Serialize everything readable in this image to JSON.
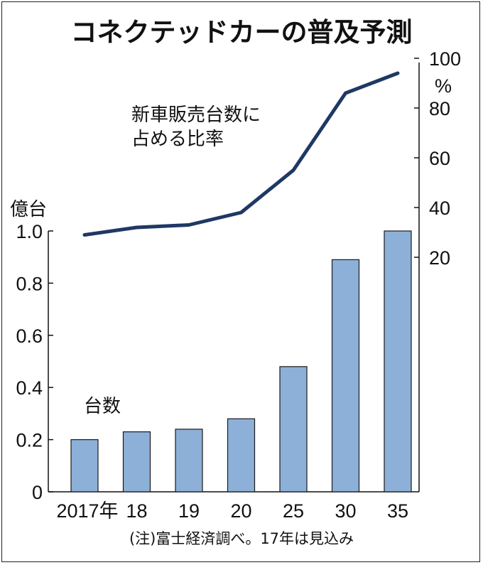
{
  "chart_data": [
    {
      "type": "bar",
      "title": "コネクテッドカーの普及予測",
      "categories": [
        "2017年",
        "18",
        "19",
        "20",
        "25",
        "30",
        "35"
      ],
      "values": [
        0.2,
        0.23,
        0.24,
        0.28,
        0.48,
        0.89,
        1.0
      ],
      "series_label": "台数",
      "ylabel": "億台",
      "ylim": [
        0,
        1.0
      ],
      "yticks": [
        "0",
        "0.2",
        "0.4",
        "0.6",
        "0.8",
        "1.0"
      ],
      "color": "#8db0d8",
      "grid": false
    },
    {
      "type": "line",
      "categories": [
        "2017年",
        "18",
        "19",
        "20",
        "25",
        "30",
        "35"
      ],
      "values": [
        29,
        32,
        33,
        38,
        55,
        86,
        94
      ],
      "series_label": "新車販売台数に\n占める比率",
      "ylabel": "%",
      "ylim": [
        20,
        100
      ],
      "yticks": [
        "20",
        "40",
        "60",
        "80",
        "100"
      ],
      "color": "#1f3864",
      "grid": false
    }
  ],
  "note": "(注)富士経済調べ。17年は見込み"
}
